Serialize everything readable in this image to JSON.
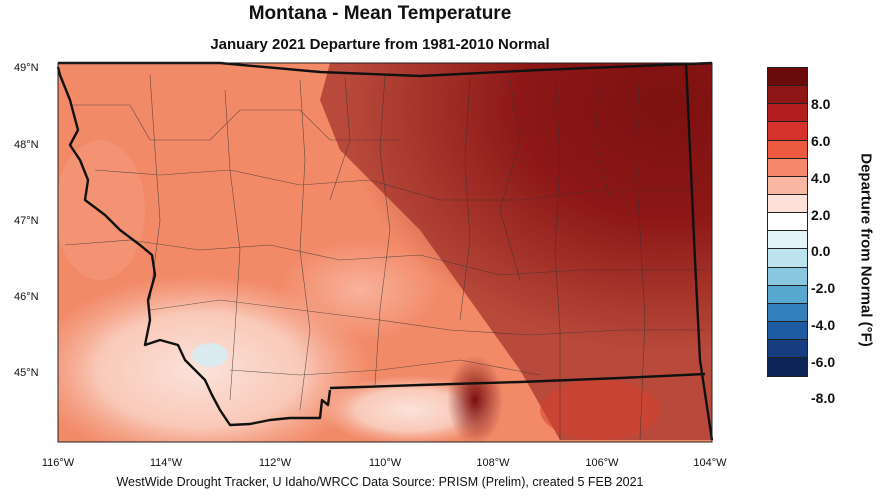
{
  "title": "Montana - Mean Temperature",
  "subtitle": "January 2021  Departure from 1981-2010 Normal",
  "footer": "WestWide Drought Tracker, U Idaho/WRCC Data Source: PRISM (Prelim), created  5 FEB 2021",
  "map": {
    "lat_labels": [
      "49°N",
      "48°N",
      "47°N",
      "46°N",
      "45°N"
    ],
    "lon_labels": [
      "116°W",
      "114°W",
      "112°W",
      "110°W",
      "108°W",
      "106°W",
      "104°W"
    ],
    "background_color": "#f28a68"
  },
  "colorbar": {
    "title": "Departure from Normal (°F)",
    "labels": [
      "8.0",
      "6.0",
      "4.0",
      "2.0",
      "0.0",
      "-2.0",
      "-4.0",
      "-6.0",
      "-8.0"
    ],
    "colors": [
      "#6b0a0a",
      "#8e1616",
      "#b51e1e",
      "#d6312b",
      "#ee5a3f",
      "#f5876a",
      "#f9b6a2",
      "#fde1d8",
      "#ffffff",
      "#e3f3f8",
      "#bde3ee",
      "#89c8df",
      "#58a7cf",
      "#3480bd",
      "#1f5ba3",
      "#173d80",
      "#0e2356"
    ]
  }
}
